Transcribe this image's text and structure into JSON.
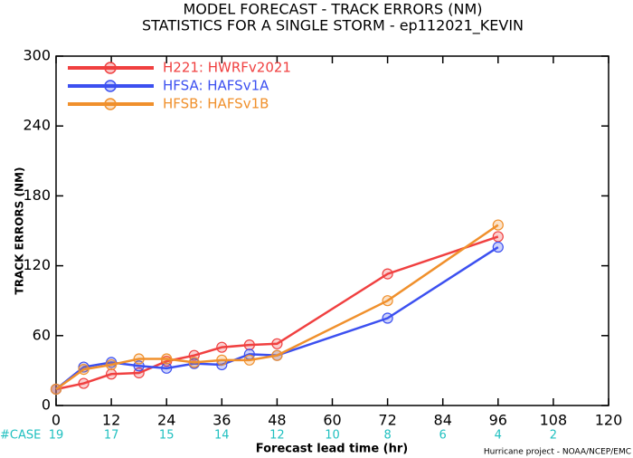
{
  "chart_data": {
    "type": "line",
    "title": "MODEL FORECAST - TRACK ERRORS (NM)",
    "subtitle": "STATISTICS FOR A SINGLE STORM - ep112021_KEVIN",
    "x_label": "Forecast lead time (hr)",
    "y_label": "TRACK ERRORS (NM)",
    "footer": "Hurricane project - NOAA/NCEP/EMC",
    "x": [
      0,
      6,
      12,
      18,
      24,
      30,
      36,
      42,
      48,
      72,
      96
    ],
    "series": [
      {
        "name": "H221: HWRFv2021",
        "color": "#f04040",
        "values": [
          14,
          19,
          27,
          28,
          38,
          43,
          50,
          52,
          53,
          113,
          145
        ]
      },
      {
        "name": "HFSA: HAFSv1A",
        "color": "#3c50f0",
        "values": [
          14,
          33,
          37,
          34,
          32,
          36,
          35,
          44,
          43,
          75,
          136
        ]
      },
      {
        "name": "HFSB: HAFSv1B",
        "color": "#f0902c",
        "values": [
          14,
          31,
          35,
          40,
          40,
          37,
          39,
          39,
          43,
          90,
          155
        ]
      }
    ],
    "xlim": [
      0,
      120
    ],
    "xticks": [
      0,
      12,
      24,
      36,
      48,
      60,
      72,
      84,
      96,
      108,
      120
    ],
    "ylim": [
      0,
      300
    ],
    "yticks": [
      0,
      60,
      120,
      180,
      240,
      300
    ],
    "case_label": "#CASE",
    "case_x": [
      0,
      12,
      24,
      36,
      48,
      60,
      72,
      84,
      96,
      108
    ],
    "case_counts": [
      19,
      17,
      15,
      14,
      12,
      10,
      8,
      6,
      4,
      2
    ],
    "case_color": "#20c0c0",
    "legend": "upper-left",
    "grid": false
  }
}
